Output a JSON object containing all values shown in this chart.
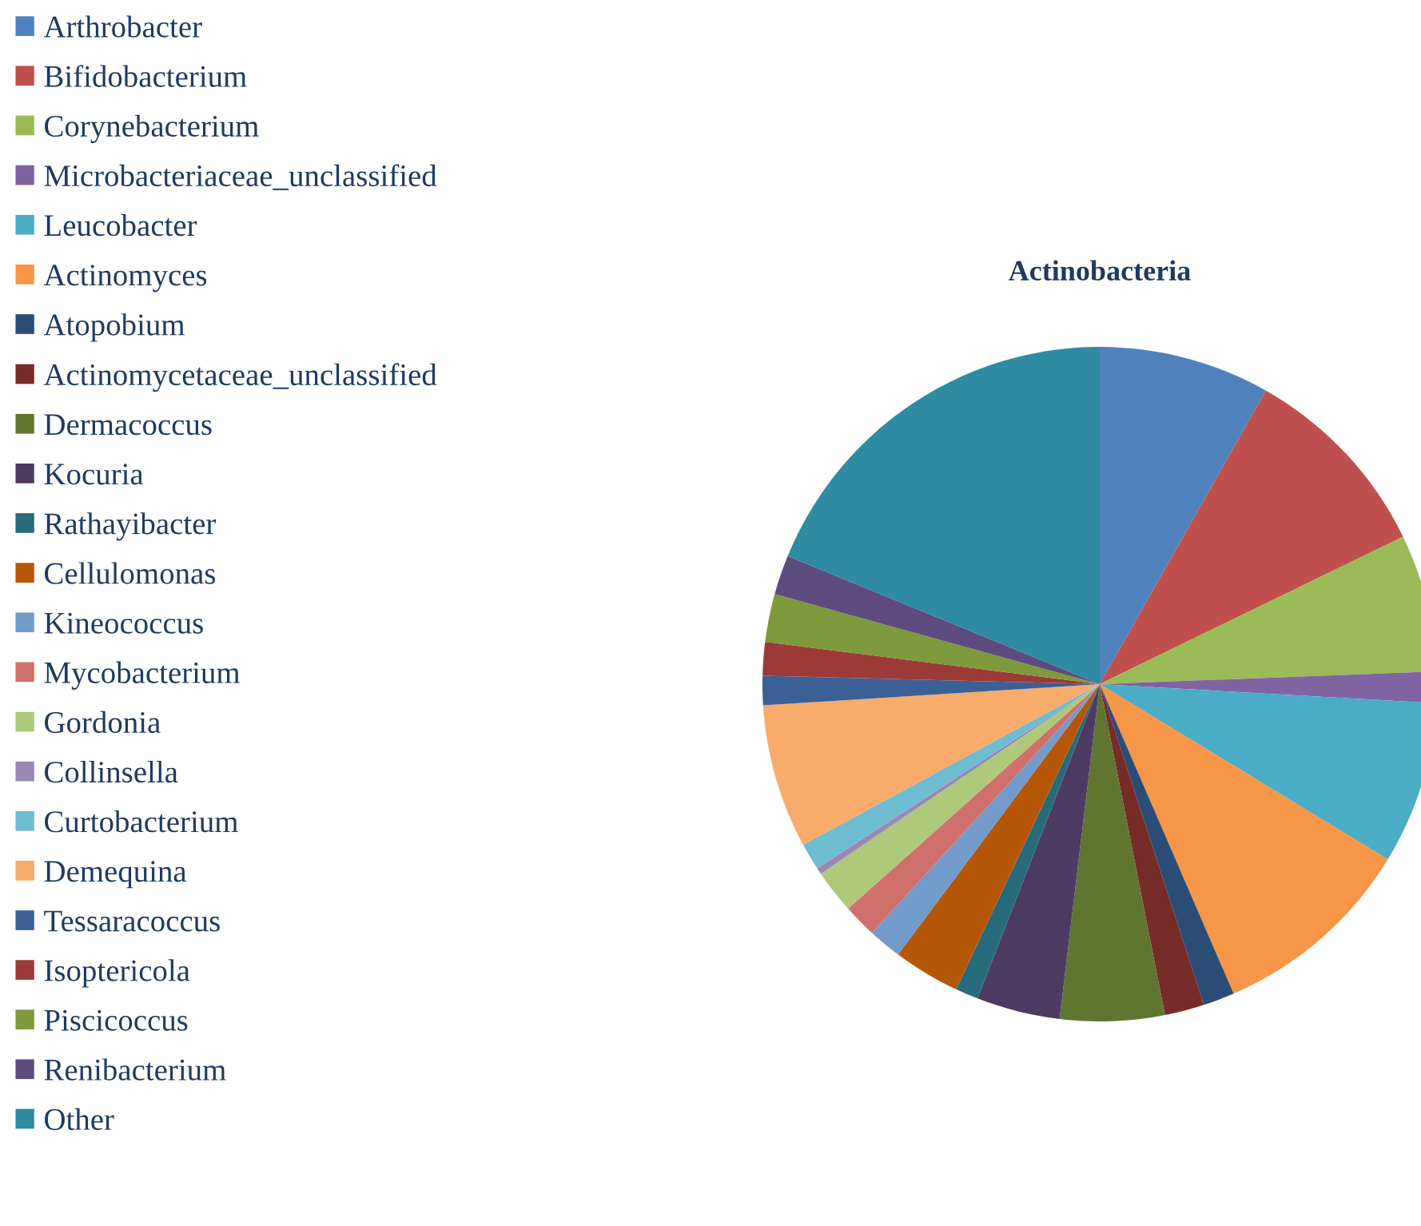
{
  "chart_data": {
    "type": "pie",
    "title": "Actinobacteria",
    "legend": "left",
    "categories": [
      "Arthrobacter",
      "Bifidobacterium",
      "Corynebacterium",
      "Microbacteriaceae_unclassified",
      "Leucobacter",
      "Actinomyces",
      "Atopobium",
      "Actinomycetaceae_unclassified",
      "Dermacoccus",
      "Kocuria",
      "Rathayibacter",
      "Cellulomonas",
      "Kineococcus",
      "Mycobacterium",
      "Gordonia",
      "Collinsella",
      "Curtobacterium",
      "Demequina",
      "Tessaracoccus",
      "Isoptericola",
      "Piscicoccus",
      "Renibacterium",
      "Other"
    ],
    "values": [
      8.2,
      9.6,
      6.6,
      1.5,
      7.8,
      9.8,
      1.5,
      1.9,
      5.0,
      4.0,
      1.1,
      3.2,
      1.6,
      1.6,
      2.1,
      0.3,
      1.3,
      6.9,
      1.4,
      1.6,
      2.3,
      1.9,
      18.8
    ],
    "colors": [
      "#4f81bd",
      "#c0504d",
      "#9bbb59",
      "#8064a2",
      "#4bacc6",
      "#f79646",
      "#2c4d75",
      "#772c2a",
      "#5f7530",
      "#4d3b62",
      "#276a7c",
      "#b65708",
      "#729aca",
      "#d0706d",
      "#afc97a",
      "#9b87b5",
      "#6fbdd1",
      "#f9ab6b",
      "#3a6096",
      "#9c3a38",
      "#7d9a3d",
      "#5e4b7e",
      "#2e8ba2"
    ]
  }
}
